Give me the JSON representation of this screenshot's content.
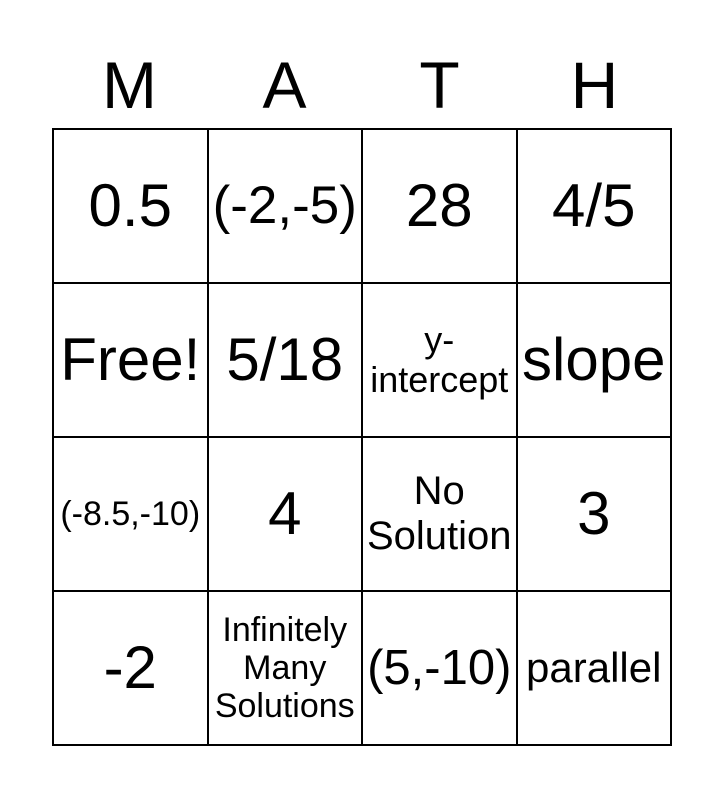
{
  "header": {
    "letters": [
      "M",
      "A",
      "T",
      "H"
    ]
  },
  "grid": {
    "rows": [
      {
        "cells": [
          {
            "text": "0.5"
          },
          {
            "text": "(-2,-5)"
          },
          {
            "text": "28"
          },
          {
            "text": "4/5"
          }
        ]
      },
      {
        "cells": [
          {
            "text": "Free!"
          },
          {
            "text": "5/18"
          },
          {
            "text": "y-intercept"
          },
          {
            "text": "slope"
          }
        ]
      },
      {
        "cells": [
          {
            "text": "(-8.5,-10)"
          },
          {
            "text": "4"
          },
          {
            "text": "No Solution"
          },
          {
            "text": "3"
          }
        ]
      },
      {
        "cells": [
          {
            "text": "-2"
          },
          {
            "text": "Infinitely Many Solutions"
          },
          {
            "text": "(5,-10)"
          },
          {
            "text": "parallel"
          }
        ]
      }
    ]
  },
  "colors": {
    "text": "#000000",
    "background": "#ffffff",
    "grid_line": "#000000"
  }
}
